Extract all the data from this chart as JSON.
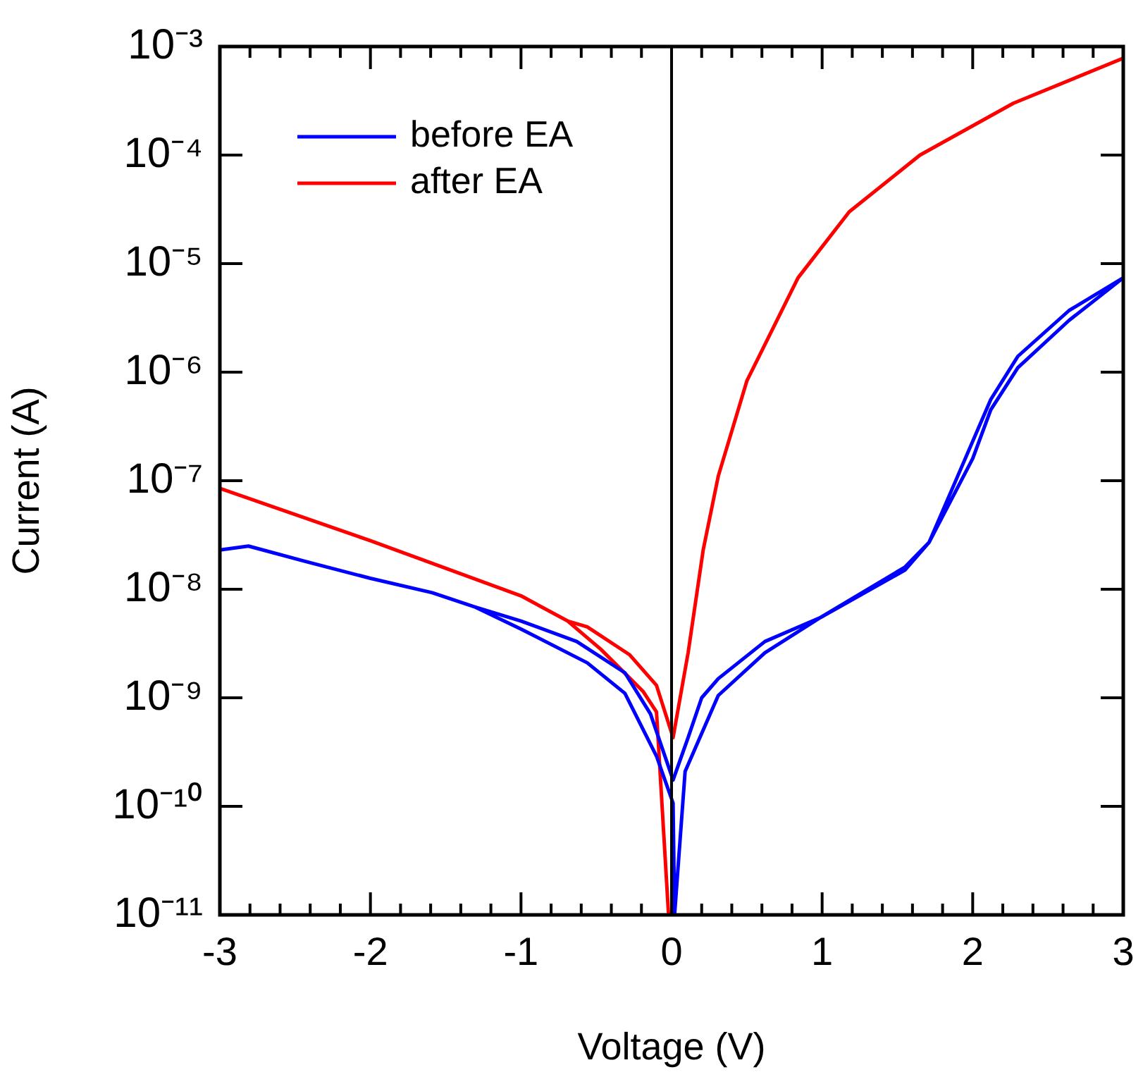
{
  "chart_data": {
    "type": "line",
    "xlabel": "Voltage (V)",
    "ylabel": "Current (A)",
    "log": "y",
    "legend": "top left",
    "marker": "none",
    "line_style": "solid",
    "grid": false,
    "xlim": [
      -3,
      3
    ],
    "xticks": [
      -3,
      {
        "value": -2.8,
        "label": null
      },
      {
        "value": -2.6,
        "label": null
      },
      {
        "value": -2.4,
        "label": null
      },
      {
        "value": -2.2,
        "label": null
      },
      -2,
      {
        "value": -1.8,
        "label": null
      },
      {
        "value": -1.6,
        "label": null
      },
      {
        "value": -1.4,
        "label": null
      },
      {
        "value": -1.2,
        "label": null
      },
      -1,
      {
        "value": -0.8,
        "label": null
      },
      {
        "value": -0.6,
        "label": null
      },
      {
        "value": -0.4,
        "label": null
      },
      {
        "value": -0.2,
        "label": null
      },
      0,
      {
        "value": 0.2,
        "label": null
      },
      {
        "value": 0.4,
        "label": null
      },
      {
        "value": 0.6,
        "label": null
      },
      {
        "value": 0.8,
        "label": null
      },
      1,
      {
        "value": 1.2,
        "label": null
      },
      {
        "value": 1.4,
        "label": null
      },
      {
        "value": 1.6,
        "label": null
      },
      {
        "value": 1.8,
        "label": null
      },
      2,
      {
        "value": 2.2,
        "label": null
      },
      {
        "value": 2.4,
        "label": null
      },
      {
        "value": 2.6,
        "label": null
      },
      {
        "value": 2.8,
        "label": null
      },
      3
    ],
    "ylim": [
      1e-11,
      0.001
    ],
    "yticks": [
      {
        "value": 1e-11,
        "label": "10⁻¹¹"
      },
      {
        "value": 1e-10,
        "label": "10⁻¹⁰"
      },
      {
        "value": 1e-09,
        "label": "10⁻⁹"
      },
      {
        "value": 1e-08,
        "label": "10⁻⁸"
      },
      {
        "value": 1e-07,
        "label": "10⁻⁷"
      },
      {
        "value": 1e-06,
        "label": "10⁻⁶"
      },
      {
        "value": 1e-05,
        "label": "10⁻⁵"
      },
      {
        "value": 0.0001,
        "label": "10⁻⁴"
      },
      {
        "value": 0.001,
        "label": "10⁻³"
      }
    ],
    "ref_lines": [
      {
        "axis": "x",
        "value": 0,
        "color": "#000000",
        "line_style": "solid"
      }
    ],
    "series": [
      {
        "name": "before EA",
        "color": "#0000ff",
        "x": [
          -3,
          -2.81,
          -2.43,
          -2,
          -1.59,
          -1.31,
          -1,
          -0.63,
          -0.31,
          -0.14,
          0.01,
          0.11,
          0.2,
          0.31,
          0.62,
          0.99,
          1.55,
          1.71,
          1.9,
          2.12,
          2.3,
          2.64,
          3,
          2.64,
          2.3,
          2.12,
          2,
          1.71,
          1.55,
          0.99,
          0.62,
          0.31,
          0.09,
          0.02,
          0.01,
          -0.1,
          -0.31,
          -0.56,
          -1,
          -1.31
        ],
        "values": [
          2.3e-08,
          2.5e-08,
          1.8e-08,
          1.26e-08,
          9.3e-09,
          6.9e-09,
          5.1e-09,
          3.3e-09,
          1.7e-09,
          7.1e-10,
          1.75e-10,
          4.3e-10,
          1e-09,
          1.5e-09,
          3.3e-09,
          5.5e-09,
          1.6e-08,
          2.7e-08,
          1.1e-07,
          5.6e-07,
          1.4e-06,
          3.7e-06,
          7.4e-06,
          3e-06,
          1.1e-06,
          4.5e-07,
          1.6e-07,
          2.7e-08,
          1.5e-08,
          5.5e-09,
          2.6e-09,
          1.05e-09,
          2.1e-10,
          1e-11,
          1.07e-10,
          2.9e-10,
          1.1e-09,
          2.1e-09,
          4.3e-09,
          6.9e-09
        ]
      },
      {
        "name": "after EA",
        "color": "#ff0000",
        "x": [
          3,
          2.27,
          1.65,
          1.18,
          0.84,
          0.5,
          0.31,
          0.21,
          0.11,
          0.01,
          -0.1,
          -0.28,
          -0.56,
          -0.69,
          -1,
          -2,
          -3,
          -2,
          -1,
          -0.69,
          -0.47,
          -0.19,
          -0.1,
          -0.02
        ],
        "values": [
          0.00078,
          0.0003,
          0.0001,
          3e-05,
          7.4e-06,
          8.3e-07,
          1.1e-07,
          2.3e-08,
          2.6e-09,
          4.3e-10,
          1.3e-09,
          2.5e-09,
          4.5e-09,
          5.1e-09,
          8.7e-09,
          2.8e-08,
          8.5e-08,
          2.8e-08,
          8.7e-09,
          5.1e-09,
          2.8e-09,
          1.15e-09,
          7.4e-10,
          1e-11
        ]
      }
    ]
  }
}
